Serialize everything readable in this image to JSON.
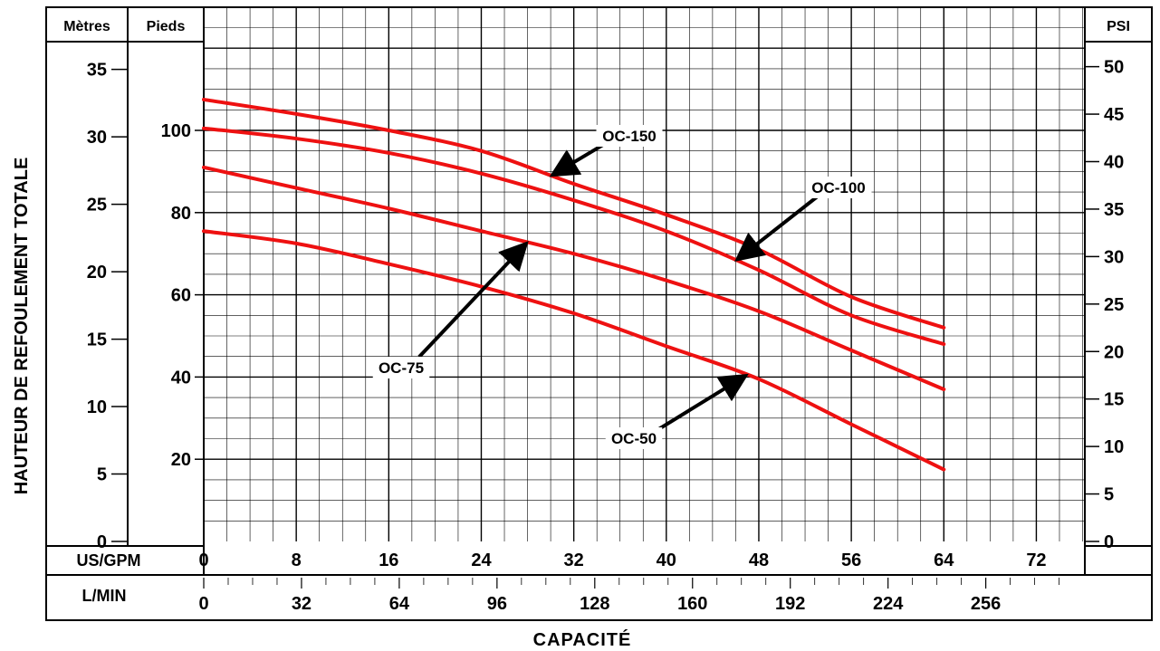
{
  "chart_data": {
    "type": "line",
    "title": "",
    "xlabel": "CAPACITÉ",
    "ylabel": "HAUTEUR DE REFOULEMENT TOTALE",
    "x_unit_label": "US/GPM",
    "x2_unit_label": "L/MIN",
    "y_feet_label": "Pieds",
    "y_meters_label": "Mètres",
    "y_psi_label": "PSI",
    "xlim": [
      0,
      76
    ],
    "ylim_feet": [
      0,
      120
    ],
    "x_ticks": [
      "0",
      "8",
      "16",
      "24",
      "32",
      "40",
      "48",
      "56",
      "64",
      "72"
    ],
    "x2_ticks": [
      "0",
      "32",
      "64",
      "96",
      "128",
      "160",
      "192",
      "224",
      "256"
    ],
    "y_feet_ticks": [
      "20",
      "40",
      "60",
      "80",
      "100"
    ],
    "y_meters_ticks": [
      "0",
      "5",
      "10",
      "15",
      "20",
      "25",
      "30",
      "35"
    ],
    "y_psi_ticks": [
      "0",
      "5",
      "10",
      "15",
      "20",
      "25",
      "30",
      "35",
      "40",
      "45",
      "50"
    ],
    "grid": true,
    "line_color": "#ee1111",
    "series": [
      {
        "name": "OC-150",
        "x": [
          0,
          8,
          16,
          24,
          32,
          40,
          48,
          56,
          64
        ],
        "y": [
          107.5,
          104,
          100,
          95,
          87,
          79.5,
          71,
          59.5,
          52
        ]
      },
      {
        "name": "OC-100",
        "x": [
          0,
          8,
          16,
          24,
          32,
          40,
          48,
          56,
          64
        ],
        "y": [
          100.5,
          98,
          94.5,
          89.5,
          83,
          75.5,
          66,
          55,
          48
        ]
      },
      {
        "name": "OC-75",
        "x": [
          0,
          8,
          16,
          24,
          32,
          40,
          48,
          56,
          64
        ],
        "y": [
          91,
          86,
          81,
          75.5,
          70,
          63.5,
          56,
          46.5,
          37
        ]
      },
      {
        "name": "OC-50",
        "x": [
          0,
          8,
          16,
          24,
          32,
          40,
          48,
          56,
          64
        ],
        "y": [
          75.5,
          72.5,
          67.5,
          62,
          55.5,
          47.5,
          39.5,
          28.5,
          17.5
        ]
      }
    ],
    "annotations": [
      {
        "text": "OC-150",
        "series": "OC-150",
        "at_x": 30
      },
      {
        "text": "OC-100",
        "series": "OC-100",
        "at_x": 46
      },
      {
        "text": "OC-75",
        "series": "OC-75",
        "at_x": 28
      },
      {
        "text": "OC-50",
        "series": "OC-50",
        "at_x": 47
      }
    ]
  }
}
